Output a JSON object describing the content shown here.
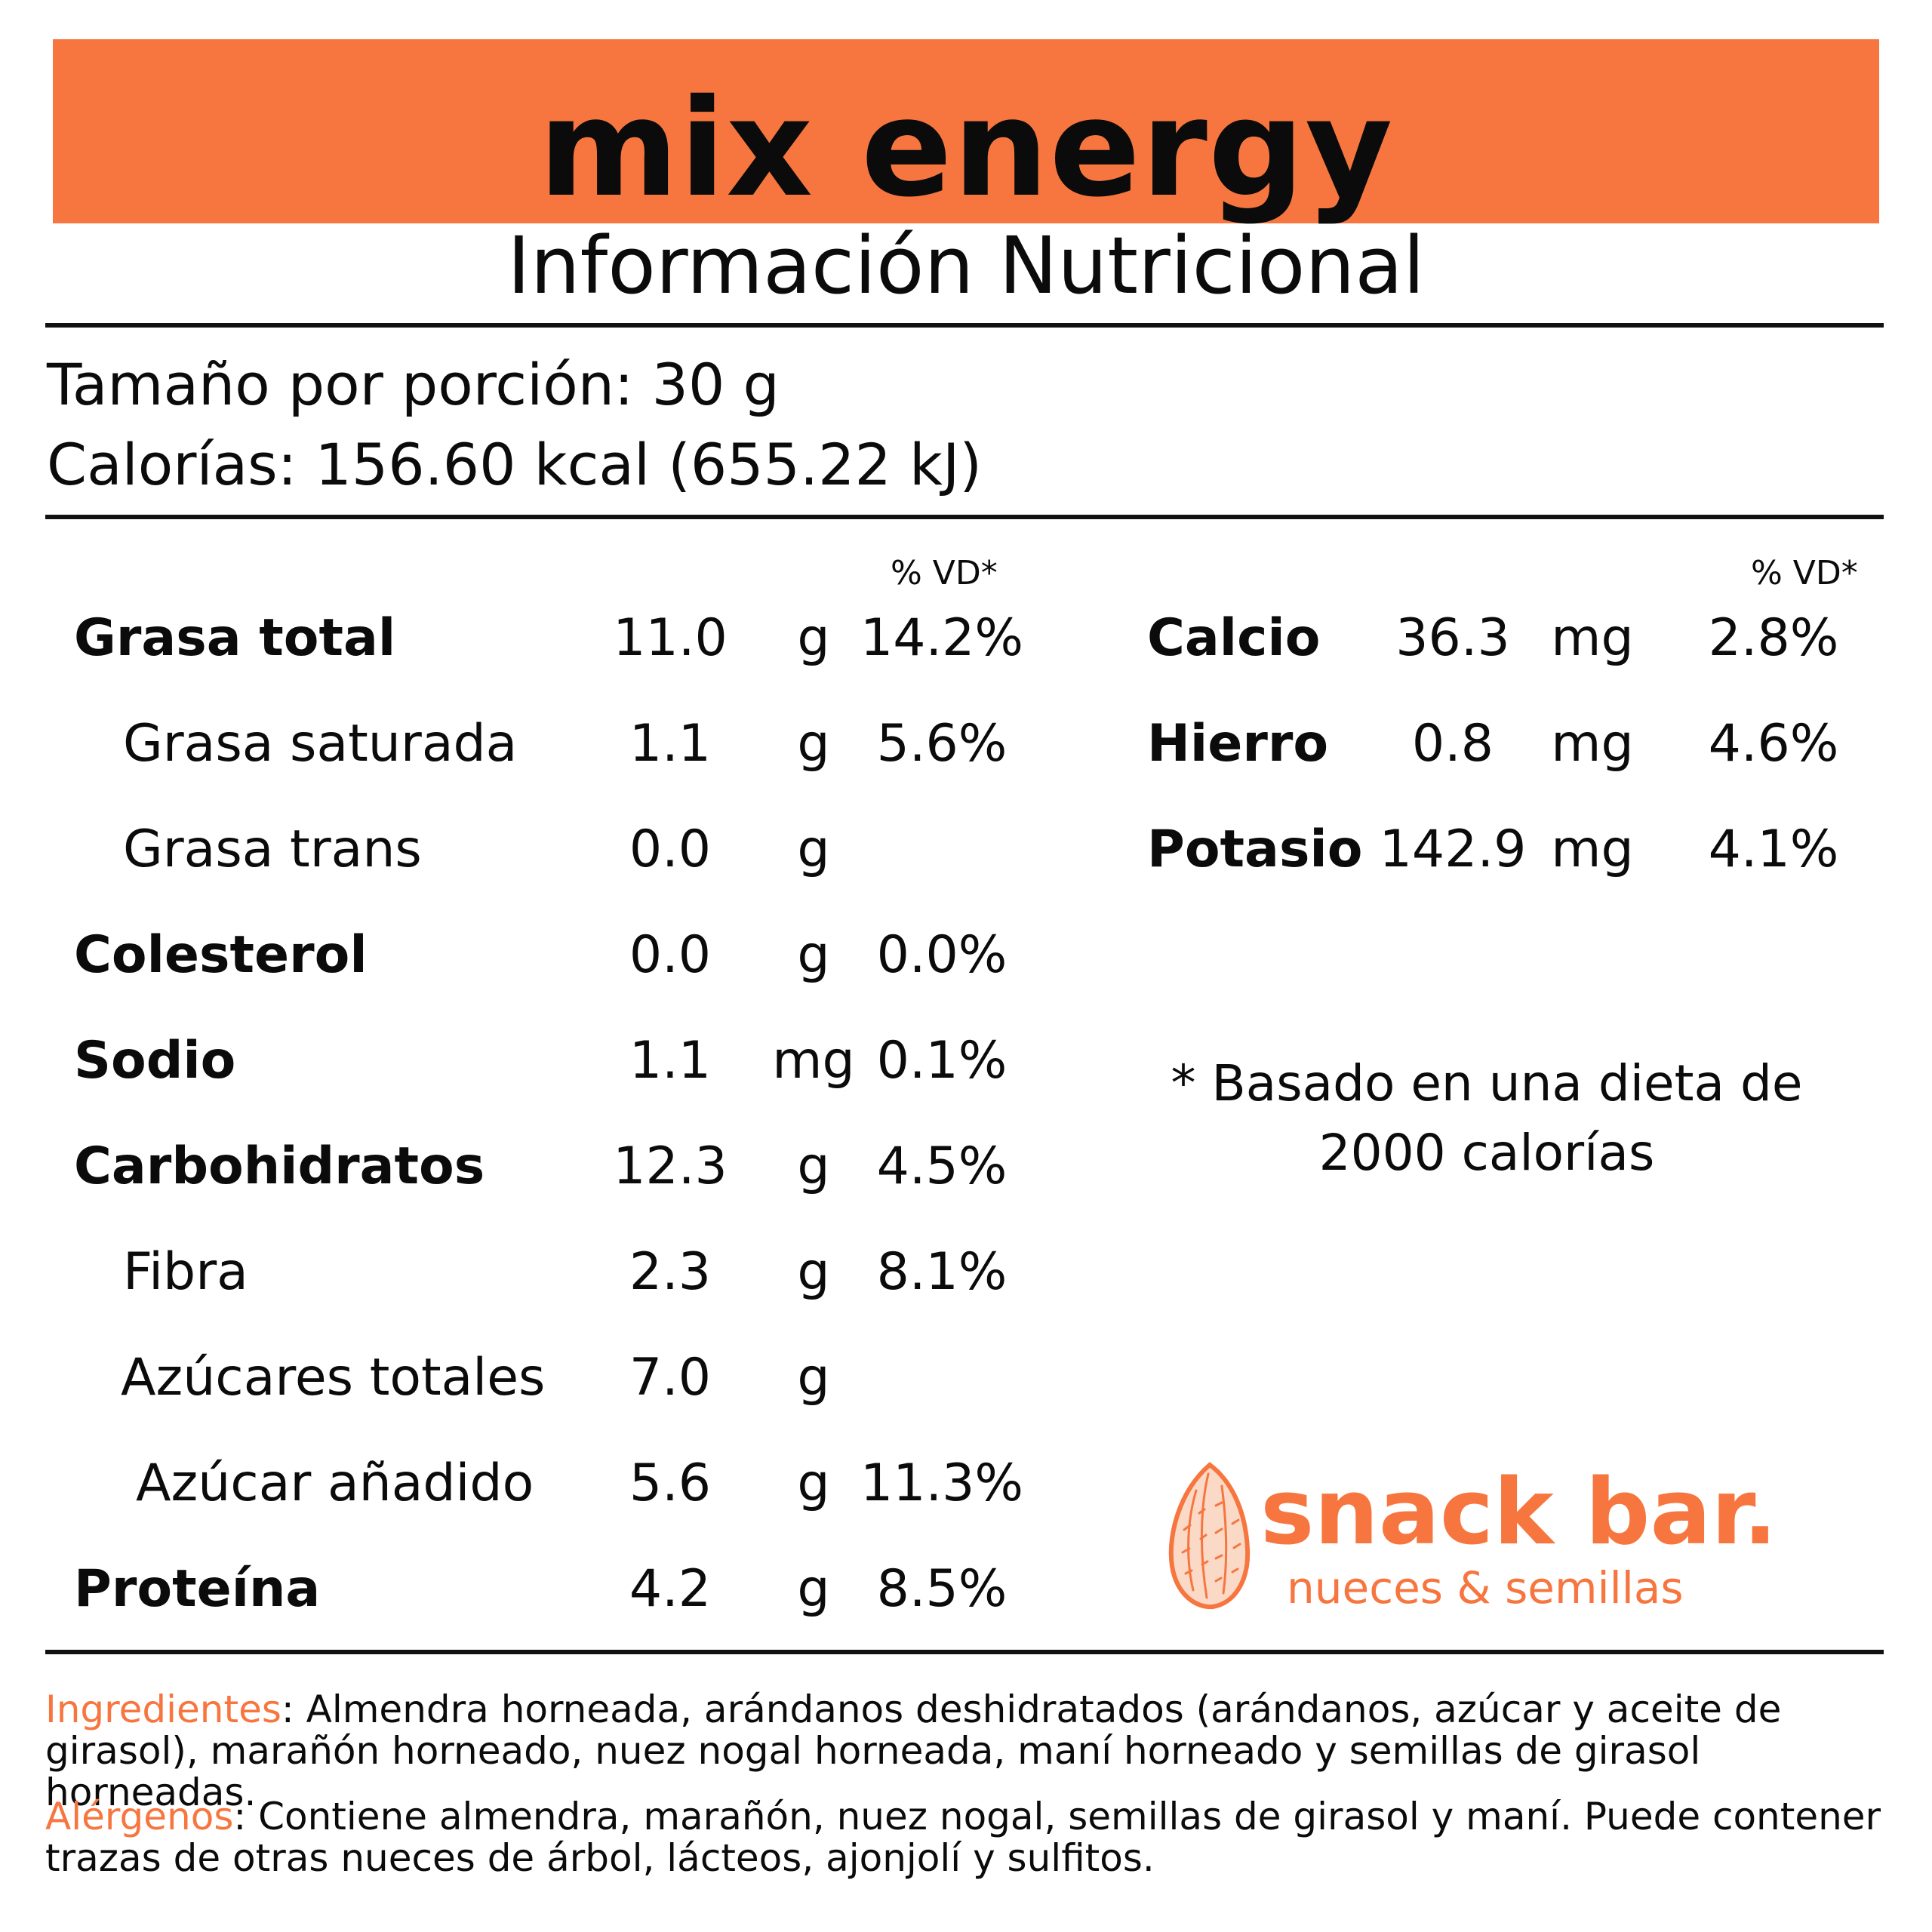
{
  "header": {
    "product_name": "mix energy",
    "subtitle": "Información Nutricional"
  },
  "serving": {
    "size": "Tamaño por porción: 30 g",
    "calories": "Calorías: 156.60 kcal (655.22 kJ)"
  },
  "dv_header": "% VD*",
  "left_nutrients": [
    {
      "name": "Grasa total",
      "amount": "11.0",
      "unit": "g",
      "dv": "14.2%"
    },
    {
      "name": "Grasa saturada",
      "amount": "1.1",
      "unit": "g",
      "dv": "5.6%"
    },
    {
      "name": "Grasa trans",
      "amount": "0.0",
      "unit": "g",
      "dv": ""
    },
    {
      "name": "Colesterol",
      "amount": "0.0",
      "unit": "g",
      "dv": "0.0%"
    },
    {
      "name": "Sodio",
      "amount": "1.1",
      "unit": "mg",
      "dv": "0.1%"
    },
    {
      "name": "Carbohidratos",
      "amount": "12.3",
      "unit": "g",
      "dv": "4.5%"
    },
    {
      "name": "Fibra",
      "amount": "2.3",
      "unit": "g",
      "dv": "8.1%"
    },
    {
      "name": "Azúcares totales",
      "amount": "7.0",
      "unit": "g",
      "dv": ""
    },
    {
      "name": "Azúcar añadido",
      "amount": "5.6",
      "unit": "g",
      "dv": "11.3%"
    },
    {
      "name": "Proteína",
      "amount": "4.2",
      "unit": "g",
      "dv": "8.5%"
    }
  ],
  "right_nutrients": [
    {
      "name": "Calcio",
      "amount": "36.3",
      "unit": "mg",
      "dv": "2.8%"
    },
    {
      "name": "Hierro",
      "amount": "0.8",
      "unit": "mg",
      "dv": "4.6%"
    },
    {
      "name": "Potasio",
      "amount": "142.9",
      "unit": "mg",
      "dv": "4.1%"
    }
  ],
  "footnote": {
    "line1": "* Basado en una dieta de",
    "line2": "2000 calorías"
  },
  "brand": {
    "name": "snack bar.",
    "tagline": "nueces & semillas",
    "logo_icon": "almond-icon"
  },
  "ingredients": {
    "label": "Ingredientes",
    "text": ": Almendra horneada, arándanos deshidratados (arándanos, azúcar y aceite de girasol), marañón horneado, nuez nogal horneada, maní horneado y semillas de girasol horneadas."
  },
  "allergens": {
    "label": "Alérgenos",
    "text": ": Contiene almendra, marañón, nuez nogal, semillas de girasol y maní. Puede contener trazas de otras nueces de árbol, lácteos, ajonjolí y sulfitos."
  },
  "colors": {
    "accent": "#F7763F",
    "text": "#0b0b0b",
    "background": "#ffffff"
  }
}
